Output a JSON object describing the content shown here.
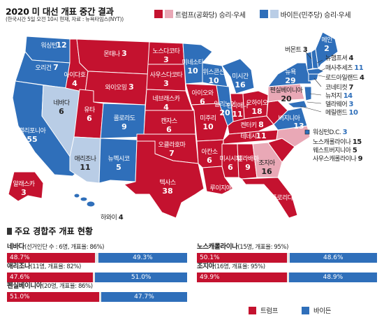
{
  "header": {
    "title": "2020 미 대선 개표 중간 결과",
    "subtitle": "(한국시간 5일 오전 10시 현재, 자료 : 뉴욕타임스(NYT))"
  },
  "legend_top": {
    "items": [
      {
        "label": "트럼프(공화당) 승리·우세",
        "color": "#c4122f"
      },
      {
        "label": "트럼프(공화당) 승리·우세",
        "color": "#e9a8b6"
      },
      {
        "label": "바이든(민주당) 승리·우세",
        "color": "#2f6fba"
      },
      {
        "label": "바이든(민주당) 승리·우세",
        "color": "#b9cde6"
      }
    ]
  },
  "map": {
    "states": [
      {
        "id": "wa",
        "name": "워싱턴",
        "votes": "12",
        "party": "dem"
      },
      {
        "id": "or",
        "name": "오리건",
        "votes": "7",
        "party": "dem"
      },
      {
        "id": "ca",
        "name": "캘리포니아",
        "votes": "55",
        "party": "dem"
      },
      {
        "id": "nv",
        "name": "네바다",
        "votes": "6",
        "party": "dem_lean"
      },
      {
        "id": "id",
        "name": "아이다호",
        "votes": "4",
        "party": "rep"
      },
      {
        "id": "mt",
        "name": "몬태나",
        "votes": "3",
        "party": "rep"
      },
      {
        "id": "wy",
        "name": "와이오밍",
        "votes": "3",
        "party": "rep"
      },
      {
        "id": "ut",
        "name": "유타",
        "votes": "6",
        "party": "rep"
      },
      {
        "id": "co",
        "name": "콜로라도",
        "votes": "9",
        "party": "dem"
      },
      {
        "id": "az",
        "name": "애리조나",
        "votes": "11",
        "party": "dem_lean"
      },
      {
        "id": "nm",
        "name": "뉴멕시코",
        "votes": "5",
        "party": "dem"
      },
      {
        "id": "nd",
        "name": "노스다코타",
        "votes": "3",
        "party": "rep"
      },
      {
        "id": "sd",
        "name": "사우스다코타",
        "votes": "3",
        "party": "rep"
      },
      {
        "id": "ne",
        "name": "네브래스카",
        "votes": "4",
        "party": "rep"
      },
      {
        "id": "ks",
        "name": "캔자스",
        "votes": "6",
        "party": "rep"
      },
      {
        "id": "ok",
        "name": "오클라호마",
        "votes": "7",
        "party": "rep"
      },
      {
        "id": "tx",
        "name": "텍사스",
        "votes": "38",
        "party": "rep"
      },
      {
        "id": "mn",
        "name": "미네소타",
        "votes": "10",
        "party": "dem"
      },
      {
        "id": "ia",
        "name": "아이오와",
        "votes": "6",
        "party": "rep"
      },
      {
        "id": "mo",
        "name": "미주리",
        "votes": "10",
        "party": "rep"
      },
      {
        "id": "ar",
        "name": "아칸소",
        "votes": "6",
        "party": "rep"
      },
      {
        "id": "la",
        "name": "루이지애나",
        "votes": "8",
        "party": "rep"
      },
      {
        "id": "wi",
        "name": "위스콘신",
        "votes": "10",
        "party": "dem"
      },
      {
        "id": "il",
        "name": "일리노이",
        "votes": "20",
        "party": "dem"
      },
      {
        "id": "mi",
        "name": "미시간",
        "votes": "16",
        "party": "dem"
      },
      {
        "id": "in",
        "name": "인디애나",
        "votes": "11",
        "party": "rep"
      },
      {
        "id": "oh",
        "name": "오하이오",
        "votes": "18",
        "party": "rep"
      },
      {
        "id": "ky",
        "name": "켄터키",
        "votes": "8",
        "party": "rep"
      },
      {
        "id": "tn",
        "name": "테네시",
        "votes": "11",
        "party": "rep"
      },
      {
        "id": "ms",
        "name": "미시시피",
        "votes": "6",
        "party": "rep"
      },
      {
        "id": "al",
        "name": "앨라배마",
        "votes": "9",
        "party": "rep"
      },
      {
        "id": "ga",
        "name": "조지아",
        "votes": "16",
        "party": "rep_lean"
      },
      {
        "id": "fl",
        "name": "플로리다",
        "votes": "29",
        "party": "rep"
      },
      {
        "id": "sc",
        "name": "",
        "votes": "",
        "party": "rep"
      },
      {
        "id": "nc",
        "name": "",
        "votes": "",
        "party": "rep_lean"
      },
      {
        "id": "va",
        "name": "",
        "votes": "",
        "party": "dem"
      },
      {
        "id": "wv",
        "name": "",
        "votes": "",
        "party": "rep"
      },
      {
        "id": "pa",
        "name": "펜실베이니아",
        "votes": "20",
        "party": "rep_lean"
      },
      {
        "id": "ny",
        "name": "뉴욕",
        "votes": "29",
        "party": "dem"
      },
      {
        "id": "vt",
        "name": "",
        "votes": "",
        "party": "dem"
      },
      {
        "id": "nh",
        "name": "",
        "votes": "",
        "party": "dem"
      },
      {
        "id": "me",
        "name": "메인",
        "votes": "2",
        "party": "dem"
      },
      {
        "id": "ak",
        "name": "알래스카",
        "votes": "3",
        "party": "rep"
      },
      {
        "id": "hi",
        "name": "",
        "votes": "",
        "party": "dem"
      }
    ],
    "external_labels": [
      {
        "name": "버몬트",
        "votes": "3"
      },
      {
        "name": "뉴햄프셔",
        "votes": "4"
      },
      {
        "name": "매사추세츠",
        "votes": "11"
      },
      {
        "name": "로드아일랜드",
        "votes": "4"
      },
      {
        "name": "코네티컷",
        "votes": "7"
      },
      {
        "name": "뉴저지",
        "votes": "14"
      },
      {
        "name": "델라웨어",
        "votes": "3"
      },
      {
        "name": "메릴랜드",
        "votes": "10"
      },
      {
        "name": "워싱턴D.C.",
        "votes": "3"
      },
      {
        "name": "노스캐롤라이나",
        "votes": "15"
      },
      {
        "name": "웨스트버지니아",
        "votes": "5"
      },
      {
        "name": "사우스캐롤라이나",
        "votes": "9"
      },
      {
        "name": "하와이",
        "votes": "4"
      }
    ],
    "virginia_label": {
      "name": "버지니아",
      "votes": "13"
    },
    "colors": {
      "rep": "#c4122f",
      "rep_lean": "#e9a8b6",
      "dem": "#2f6fba",
      "dem_lean": "#b9cde6"
    }
  },
  "results": {
    "section_title": "주요 경합주 개표 현황",
    "blocks": [
      {
        "state": "네바다",
        "detail": "(선거인단 수 : 6명, 개표율: 86%)",
        "trump": "48.7%",
        "biden": "49.3%",
        "trump_share": 48.7,
        "biden_share": 49.3
      },
      {
        "state": "애리조나",
        "detail": "(11명, 개표율: 82%)",
        "trump": "47.6%",
        "biden": "51.0%",
        "trump_share": 47.6,
        "biden_share": 51.0
      },
      {
        "state": "펜실베이니아",
        "detail": "(20명, 개표율: 86%)",
        "trump": "51.0%",
        "biden": "47.7%",
        "trump_share": 51.0,
        "biden_share": 47.7
      },
      {
        "state": "노스캐롤라이나",
        "detail": "(15명, 개표율: 95%)",
        "trump": "50.1%",
        "biden": "48.6%",
        "trump_share": 50.1,
        "biden_share": 48.6
      },
      {
        "state": "조지아",
        "detail": "(16명, 개표율: 95%)",
        "trump": "49.9%",
        "biden": "48.9%",
        "trump_share": 49.9,
        "biden_share": 48.9
      }
    ]
  },
  "legend_bottom": {
    "trump": {
      "label": "트럼프",
      "color": "#c4122f"
    },
    "biden": {
      "label": "바이든",
      "color": "#2f6fba"
    }
  }
}
